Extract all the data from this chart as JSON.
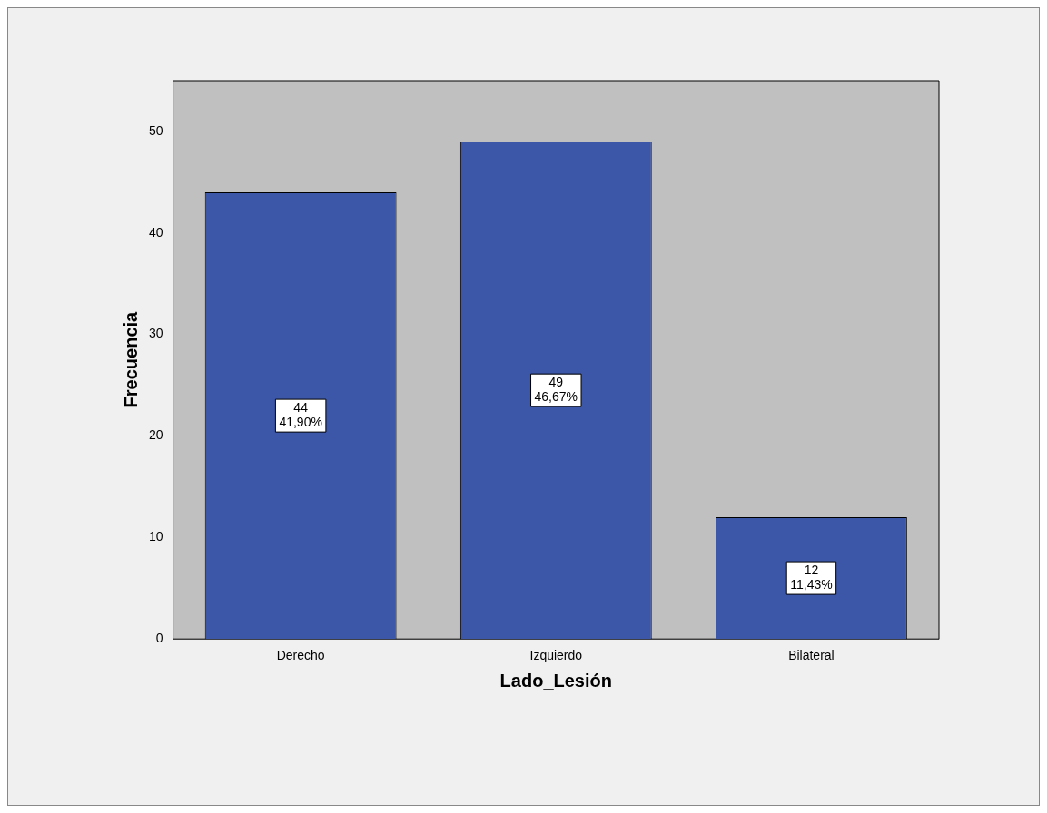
{
  "chart_data": {
    "type": "bar",
    "xlabel": "Lado_Lesión",
    "ylabel": "Frecuencia",
    "categories": [
      "Derecho",
      "Izquierdo",
      "Bilateral"
    ],
    "values": [
      44,
      49,
      12
    ],
    "color": "#3c56a8",
    "value_labels": [
      "44\n41,90%",
      "49\n46,67%",
      "12\n11,43%"
    ],
    "ylim": [
      0,
      55
    ],
    "yticks": [
      0,
      10,
      20,
      30,
      40,
      50
    ],
    "grid": false,
    "legend": false
  }
}
